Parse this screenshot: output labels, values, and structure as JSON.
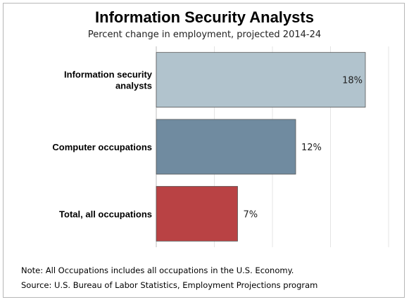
{
  "chart_data": {
    "type": "bar",
    "orientation": "horizontal",
    "title": "Information Security Analysts",
    "subtitle": "Percent change in employment, projected 2014-24",
    "categories": [
      "Information security analysts",
      "Computer occupations",
      "Total, all occupations"
    ],
    "values": [
      18,
      12,
      7
    ],
    "value_labels": [
      "18%",
      "12%",
      "7%"
    ],
    "colors": [
      "#b1c3cd",
      "#708ba0",
      "#b94244"
    ],
    "xlim": [
      0,
      20
    ],
    "grid": true,
    "xlabel": "",
    "ylabel": ""
  },
  "notes": {
    "note": "Note: All Occupations includes all occupations in the U.S. Economy.",
    "source": "Source: U.S. Bureau of Labor Statistics, Employment Projections program"
  }
}
